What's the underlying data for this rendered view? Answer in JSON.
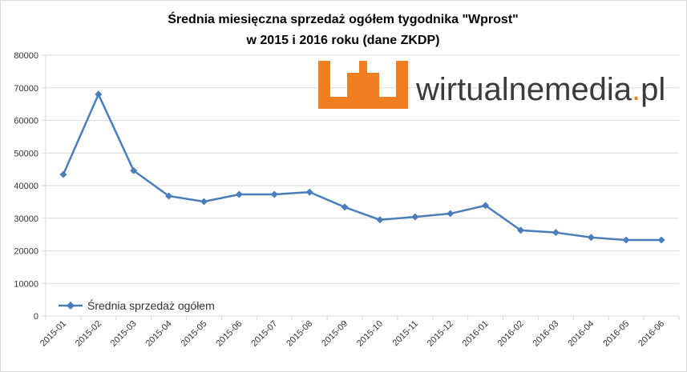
{
  "colors": {
    "series": "#4a7ebb",
    "grid": "#d9d9d9",
    "logo_orange": "#f07f22",
    "logo_text": "#3a3a3a"
  },
  "logo": {
    "text_main": "wirtualnemedia",
    "text_dot": ".",
    "text_tld": "pl"
  },
  "chart_data": {
    "type": "line",
    "title": "Średnia miesięczna sprzedaż ogółem tygodnika \"Wprost\"",
    "subtitle": "w 2015 i 2016 roku (dane ZKDP)",
    "xlabel": "",
    "ylabel": "",
    "ylim": [
      0,
      80000
    ],
    "yticks": [
      0,
      10000,
      20000,
      30000,
      40000,
      50000,
      60000,
      70000,
      80000
    ],
    "ytick_labels": [
      "0",
      "10000",
      "20000",
      "30000",
      "40000",
      "50000",
      "60000",
      "70000",
      "80000"
    ],
    "grid": true,
    "legend_position": "bottom-left",
    "categories": [
      "2015-01",
      "2015-02",
      "2015-03",
      "2015-04",
      "2015-05",
      "2015-06",
      "2015-07",
      "2015-08",
      "2015-09",
      "2015-10",
      "2015-11",
      "2015-12",
      "2016-01",
      "2016-02",
      "2016-03",
      "2016-04",
      "2016-05",
      "2016-06"
    ],
    "series": [
      {
        "name": "Średnia sprzedaż ogółem",
        "values": [
          43400,
          68000,
          44600,
          36800,
          35100,
          37300,
          37300,
          38000,
          33400,
          29500,
          30400,
          31400,
          33900,
          26300,
          25600,
          24100,
          23300,
          23300
        ]
      }
    ]
  }
}
